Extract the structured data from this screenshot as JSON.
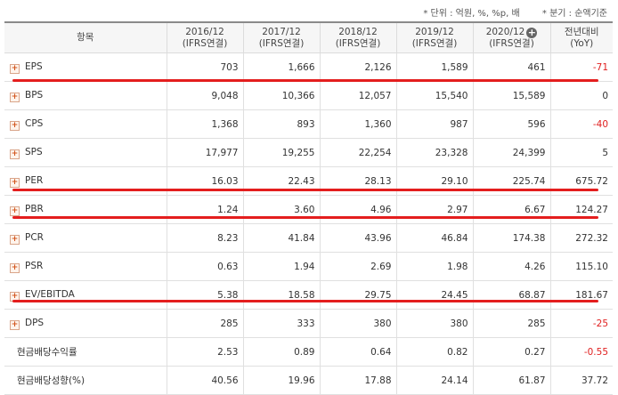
{
  "units": {
    "unit_note": "* 단위 : 억원, %, %p, 배",
    "basis_note": "* 분기 : 순액기준"
  },
  "table": {
    "item_header": "항목",
    "columns": [
      {
        "year": "2016/12",
        "basis": "(IFRS연결)"
      },
      {
        "year": "2017/12",
        "basis": "(IFRS연결)"
      },
      {
        "year": "2018/12",
        "basis": "(IFRS연결)"
      },
      {
        "year": "2019/12",
        "basis": "(IFRS연결)"
      },
      {
        "year": "2020/12",
        "basis": "(IFRS연결)"
      }
    ],
    "yoy_header": {
      "line1": "전년대비",
      "line2": "(YoY)"
    },
    "expand_icon": "plus-circle-icon",
    "rows": [
      {
        "label": "EPS",
        "values": [
          "703",
          "1,666",
          "2,126",
          "1,589",
          "461"
        ],
        "yoy": "-71"
      },
      {
        "label": "BPS",
        "values": [
          "9,048",
          "10,366",
          "12,057",
          "15,540",
          "15,589"
        ],
        "yoy": "0"
      },
      {
        "label": "CPS",
        "values": [
          "1,368",
          "893",
          "1,360",
          "987",
          "596"
        ],
        "yoy": "-40"
      },
      {
        "label": "SPS",
        "values": [
          "17,977",
          "19,255",
          "22,254",
          "23,328",
          "24,399"
        ],
        "yoy": "5"
      },
      {
        "label": "PER",
        "values": [
          "16.03",
          "22.43",
          "28.13",
          "29.10",
          "225.74"
        ],
        "yoy": "675.72"
      },
      {
        "label": "PBR",
        "values": [
          "1.24",
          "3.60",
          "4.96",
          "2.97",
          "6.67"
        ],
        "yoy": "124.27"
      },
      {
        "label": "PCR",
        "values": [
          "8.23",
          "41.84",
          "43.96",
          "46.84",
          "174.38"
        ],
        "yoy": "272.32"
      },
      {
        "label": "PSR",
        "values": [
          "0.63",
          "1.94",
          "2.69",
          "1.98",
          "4.26"
        ],
        "yoy": "115.10"
      },
      {
        "label": "EV/EBITDA",
        "values": [
          "5.38",
          "18.58",
          "29.75",
          "24.45",
          "68.87"
        ],
        "yoy": "181.67"
      },
      {
        "label": "DPS",
        "values": [
          "285",
          "333",
          "380",
          "380",
          "285"
        ],
        "yoy": "-25"
      },
      {
        "label": "현금배당수익률",
        "values": [
          "2.53",
          "0.89",
          "0.64",
          "0.82",
          "0.27"
        ],
        "yoy": "-0.55"
      },
      {
        "label": "현금배당성향(%)",
        "values": [
          "40.56",
          "19.96",
          "17.88",
          "24.14",
          "61.87"
        ],
        "yoy": "37.72"
      }
    ]
  },
  "colors": {
    "negative": "#e02020",
    "annotation_underline": "#e41e1e"
  }
}
